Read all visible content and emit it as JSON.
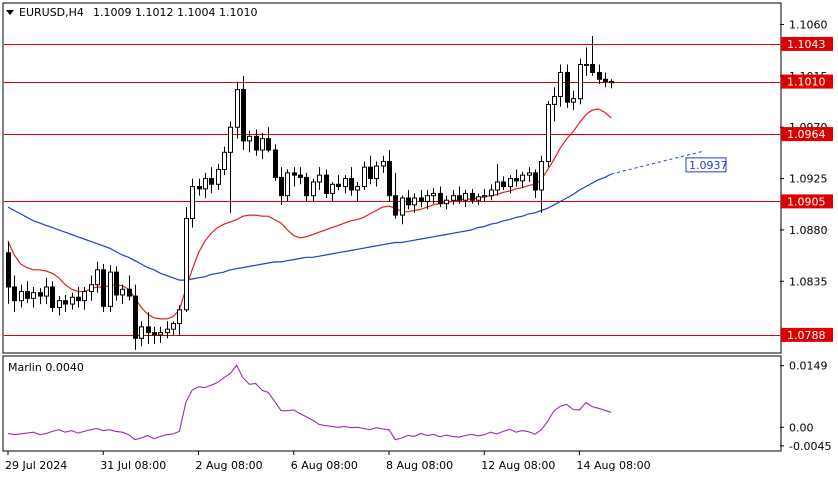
{
  "header": {
    "symbol": "EURUSD,H4",
    "ohlc": "1.1009 1.1012 1.1004 1.1010"
  },
  "indicator": {
    "label": "Marlin 0.0040"
  },
  "colors": {
    "level": "#dd0000",
    "ma_fast": "#e02020",
    "ma_slow": "#1f3fcf",
    "oscillator": "#9b2bb5",
    "candle": "#000000"
  },
  "chart_data": {
    "type": "candlestick",
    "symbol": "EURUSD",
    "timeframe": "H4",
    "price_axis": {
      "ticks": [
        "1.1060",
        "1.1015",
        "1.0970",
        "1.0925",
        "1.0880",
        "1.0835"
      ],
      "range": [
        1.0773,
        1.1078
      ]
    },
    "levels": [
      {
        "value": 1.1043,
        "label": "1.1043"
      },
      {
        "value": 1.101,
        "label": "1.1010"
      },
      {
        "value": 1.0964,
        "label": "1.0964"
      },
      {
        "value": 1.0905,
        "label": "1.0905"
      },
      {
        "value": 1.0788,
        "label": "1.0788"
      }
    ],
    "projection_label": "1.0937",
    "x_labels": [
      "29 Jul 2024",
      "31 Jul 08:00",
      "2 Aug 08:00",
      "6 Aug 08:00",
      "8 Aug 08:00",
      "12 Aug 08:00",
      "14 Aug 08:00"
    ],
    "candles": [
      [
        1.086,
        1.087,
        1.0815,
        1.083
      ],
      [
        1.083,
        1.084,
        1.0808,
        1.0818
      ],
      [
        1.0818,
        1.0832,
        1.0812,
        1.0826
      ],
      [
        1.0826,
        1.0835,
        1.0816,
        1.082
      ],
      [
        1.082,
        1.083,
        1.0812,
        1.0825
      ],
      [
        1.0825,
        1.0829,
        1.0815,
        1.0822
      ],
      [
        1.0822,
        1.0838,
        1.0815,
        1.083
      ],
      [
        1.083,
        1.0835,
        1.0808,
        1.0812
      ],
      [
        1.0812,
        1.0822,
        1.0805,
        1.0818
      ],
      [
        1.0818,
        1.0823,
        1.0808,
        1.0815
      ],
      [
        1.0815,
        1.0825,
        1.081,
        1.0821
      ],
      [
        1.0821,
        1.083,
        1.0812,
        1.0818
      ],
      [
        1.0818,
        1.083,
        1.081,
        1.0826
      ],
      [
        1.0826,
        1.084,
        1.0818,
        1.0832
      ],
      [
        1.0832,
        1.0852,
        1.0825,
        1.0845
      ],
      [
        1.0845,
        1.085,
        1.0808,
        1.0813
      ],
      [
        1.0813,
        1.0849,
        1.0808,
        1.0843
      ],
      [
        1.0843,
        1.0848,
        1.0818,
        1.0823
      ],
      [
        1.0823,
        1.0832,
        1.0815,
        1.0828
      ],
      [
        1.0828,
        1.084,
        1.0818,
        1.0822
      ],
      [
        1.0822,
        1.0832,
        1.0775,
        1.0785
      ],
      [
        1.0785,
        1.08,
        1.0778,
        1.0795
      ],
      [
        1.0795,
        1.0808,
        1.078,
        1.079
      ],
      [
        1.079,
        1.0795,
        1.078,
        1.0788
      ],
      [
        1.0788,
        1.0795,
        1.0781,
        1.079
      ],
      [
        1.079,
        1.08,
        1.0785,
        1.0793
      ],
      [
        1.0793,
        1.08,
        1.0788,
        1.0798
      ],
      [
        1.0798,
        1.0814,
        1.0787,
        1.081
      ],
      [
        1.081,
        1.09,
        1.0808,
        1.089
      ],
      [
        1.089,
        1.0925,
        1.0882,
        1.0918
      ],
      [
        1.0918,
        1.0925,
        1.091,
        1.0916
      ],
      [
        1.0916,
        1.093,
        1.0908,
        1.0925
      ],
      [
        1.0925,
        1.0935,
        1.0912,
        1.092
      ],
      [
        1.092,
        1.0938,
        1.0915,
        1.0933
      ],
      [
        1.0933,
        1.0953,
        1.0928,
        1.0948
      ],
      [
        1.0948,
        1.0975,
        1.0895,
        1.097
      ],
      [
        1.097,
        1.101,
        1.096,
        1.1003
      ],
      [
        1.1003,
        1.1015,
        1.095,
        1.0958
      ],
      [
        1.0958,
        1.0967,
        1.0948,
        1.0962
      ],
      [
        1.0962,
        1.0968,
        1.0945,
        1.095
      ],
      [
        1.095,
        1.0965,
        1.0942,
        1.096
      ],
      [
        1.096,
        1.097,
        1.0948,
        1.095
      ],
      [
        1.095,
        1.0955,
        1.0923,
        1.0926
      ],
      [
        1.0926,
        1.0935,
        1.0902,
        1.091
      ],
      [
        1.091,
        1.0933,
        1.0905,
        1.093
      ],
      [
        1.093,
        1.0935,
        1.0918,
        1.0928
      ],
      [
        1.0928,
        1.0935,
        1.092,
        1.0926
      ],
      [
        1.0926,
        1.093,
        1.0905,
        1.091
      ],
      [
        1.091,
        1.0925,
        1.0905,
        1.0922
      ],
      [
        1.0922,
        1.0935,
        1.0915,
        1.0928
      ],
      [
        1.0928,
        1.0933,
        1.0908,
        1.0912
      ],
      [
        1.0912,
        1.0922,
        1.0905,
        1.092
      ],
      [
        1.092,
        1.0928,
        1.0915,
        1.0918
      ],
      [
        1.0918,
        1.0928,
        1.0912,
        1.0925
      ],
      [
        1.0925,
        1.0935,
        1.091,
        1.0915
      ],
      [
        1.0915,
        1.0922,
        1.0905,
        1.0918
      ],
      [
        1.0918,
        1.094,
        1.0915,
        1.0935
      ],
      [
        1.0935,
        1.0945,
        1.092,
        1.0925
      ],
      [
        1.0925,
        1.094,
        1.0918,
        1.0936
      ],
      [
        1.0936,
        1.0945,
        1.093,
        1.094
      ],
      [
        1.094,
        1.095,
        1.0905,
        1.091
      ],
      [
        1.091,
        1.093,
        1.089,
        1.0893
      ],
      [
        1.0893,
        1.091,
        1.0885,
        1.0908
      ],
      [
        1.0908,
        1.0915,
        1.0898,
        1.0902
      ],
      [
        1.0902,
        1.0912,
        1.0895,
        1.0908
      ],
      [
        1.0908,
        1.0915,
        1.09,
        1.0905
      ],
      [
        1.0905,
        1.0915,
        1.0898,
        1.091
      ],
      [
        1.091,
        1.0917,
        1.0903,
        1.0912
      ],
      [
        1.0912,
        1.0918,
        1.09,
        1.0903
      ],
      [
        1.0903,
        1.091,
        1.0898,
        1.0906
      ],
      [
        1.0906,
        1.0915,
        1.0902,
        1.091
      ],
      [
        1.091,
        1.0918,
        1.0903,
        1.0906
      ],
      [
        1.0906,
        1.0915,
        1.09,
        1.0912
      ],
      [
        1.0912,
        1.0916,
        1.0903,
        1.0906
      ],
      [
        1.0906,
        1.0912,
        1.0902,
        1.0909
      ],
      [
        1.0909,
        1.0916,
        1.0905,
        1.091
      ],
      [
        1.091,
        1.092,
        1.0906,
        1.0915
      ],
      [
        1.0915,
        1.0938,
        1.091,
        1.0922
      ],
      [
        1.0922,
        1.0927,
        1.0915,
        1.0918
      ],
      [
        1.0918,
        1.0928,
        1.0912,
        1.0925
      ],
      [
        1.0925,
        1.0933,
        1.0918,
        1.0923
      ],
      [
        1.0923,
        1.0931,
        1.0917,
        1.0928
      ],
      [
        1.0928,
        1.0935,
        1.0922,
        1.093
      ],
      [
        1.093,
        1.0933,
        1.0908,
        1.0915
      ],
      [
        1.0915,
        1.0945,
        1.0895,
        1.094
      ],
      [
        1.094,
        1.0993,
        1.0935,
        1.099
      ],
      [
        1.099,
        1.1005,
        1.0975,
        1.0997
      ],
      [
        1.0997,
        1.1025,
        1.0988,
        1.1018
      ],
      [
        1.1018,
        1.1025,
        1.0987,
        1.0992
      ],
      [
        1.0992,
        1.1002,
        1.0985,
        1.0995
      ],
      [
        1.0995,
        1.103,
        1.099,
        1.1025
      ],
      [
        1.1025,
        1.104,
        1.1015,
        1.1025
      ],
      [
        1.1025,
        1.105,
        1.1015,
        1.1018
      ],
      [
        1.1018,
        1.1025,
        1.1008,
        1.1012
      ],
      [
        1.1012,
        1.1018,
        1.1005,
        1.101
      ],
      [
        1.1009,
        1.1012,
        1.1004,
        1.101
      ]
    ],
    "ma_fast": [
      1.087,
      1.0858,
      1.085,
      1.0847,
      1.0845,
      1.0845,
      1.0844,
      1.0842,
      1.0838,
      1.0832,
      1.0828,
      1.0826,
      1.0826,
      1.0828,
      1.083,
      1.083,
      1.0831,
      1.0832,
      1.0831,
      1.0828,
      1.082,
      1.0812,
      1.0806,
      1.0803,
      1.0802,
      1.0802,
      1.0804,
      1.081,
      1.0828,
      1.0845,
      1.086,
      1.087,
      1.0877,
      1.0882,
      1.0885,
      1.0887,
      1.0889,
      1.0892,
      1.0893,
      1.0893,
      1.0892,
      1.0892,
      1.0889,
      1.0886,
      1.088,
      1.0875,
      1.0873,
      1.0874,
      1.0876,
      1.0878,
      1.088,
      1.0882,
      1.0884,
      1.0886,
      1.0888,
      1.0889,
      1.0891,
      1.0894,
      1.0897,
      1.09,
      1.0901,
      1.0899,
      1.0896,
      1.0896,
      1.0897,
      1.0898,
      1.09,
      1.0902,
      1.0903,
      1.0904,
      1.0905,
      1.0906,
      1.0907,
      1.0907,
      1.0908,
      1.0909,
      1.091,
      1.0911,
      1.0913,
      1.0914,
      1.0916,
      1.0917,
      1.0919,
      1.092,
      1.0924,
      1.0933,
      1.0942,
      1.0952,
      1.096,
      1.0966,
      1.0974,
      1.0981,
      1.0985,
      1.0986,
      1.0983,
      1.0978
    ],
    "ma_slow": [
      1.09,
      1.0897,
      1.0894,
      1.0891,
      1.0888,
      1.0886,
      1.0884,
      1.0882,
      1.088,
      1.0878,
      1.0876,
      1.0874,
      1.0872,
      1.087,
      1.0868,
      1.0866,
      1.0864,
      1.0861,
      1.0858,
      1.0856,
      1.0853,
      1.085,
      1.0847,
      1.0845,
      1.0842,
      1.084,
      1.0838,
      1.0836,
      1.0836,
      1.0837,
      1.0838,
      1.0839,
      1.0841,
      1.0842,
      1.0843,
      1.0845,
      1.0846,
      1.0847,
      1.0848,
      1.0849,
      1.085,
      1.0851,
      1.0852,
      1.0852,
      1.0853,
      1.0854,
      1.0855,
      1.0856,
      1.0856,
      1.0857,
      1.0858,
      1.0859,
      1.086,
      1.0861,
      1.0862,
      1.0863,
      1.0864,
      1.0865,
      1.0866,
      1.0867,
      1.0868,
      1.0869,
      1.0869,
      1.087,
      1.0871,
      1.0872,
      1.0873,
      1.0874,
      1.0875,
      1.0876,
      1.0877,
      1.0878,
      1.0879,
      1.088,
      1.0882,
      1.0883,
      1.0885,
      1.0886,
      1.0888,
      1.0889,
      1.0891,
      1.0892,
      1.0894,
      1.0895,
      1.0897,
      1.0899,
      1.0902,
      1.0905,
      1.0908,
      1.0911,
      1.0915,
      1.0918,
      1.0921,
      1.0924,
      1.0926,
      1.0929
    ],
    "ma_projection_end": 1.0949,
    "oscillator": {
      "ticks": [
        "0.0149",
        "0.00",
        "-0.0045"
      ],
      "range": [
        -0.0055,
        0.017
      ],
      "values": [
        -0.0015,
        -0.0018,
        -0.0016,
        -0.0014,
        -0.0012,
        -0.0018,
        -0.0015,
        -0.001,
        -0.0006,
        -0.0012,
        -0.0008,
        -0.0014,
        -0.001,
        -0.0006,
        -0.0003,
        -0.0008,
        -0.0006,
        -0.001,
        -0.0012,
        -0.0018,
        -0.003,
        -0.0026,
        -0.002,
        -0.0028,
        -0.0022,
        -0.0018,
        -0.0016,
        -0.001,
        0.006,
        0.009,
        0.0098,
        0.0096,
        0.0102,
        0.0108,
        0.012,
        0.013,
        0.015,
        0.012,
        0.0104,
        0.0106,
        0.009,
        0.0084,
        0.0062,
        0.004,
        0.004,
        0.0042,
        0.0033,
        0.0025,
        0.0017,
        0.0007,
        0.0004,
        0.0002,
        0.0,
        0.0002,
        -0.0001,
        0.0,
        -0.0003,
        -0.0006,
        -0.0001,
        -0.0004,
        -0.0006,
        -0.003,
        -0.0026,
        -0.002,
        -0.0022,
        -0.0015,
        -0.002,
        -0.0017,
        -0.0023,
        -0.0019,
        -0.0022,
        -0.0024,
        -0.002,
        -0.0017,
        -0.0021,
        -0.0018,
        -0.0012,
        -0.0016,
        -0.001,
        -0.0005,
        -0.0012,
        -0.0008,
        -0.0011,
        -0.0017,
        -0.0006,
        0.0015,
        0.004,
        0.0051,
        0.0055,
        0.0043,
        0.0042,
        0.006,
        0.005,
        0.0046,
        0.0041,
        0.0036
      ]
    }
  }
}
